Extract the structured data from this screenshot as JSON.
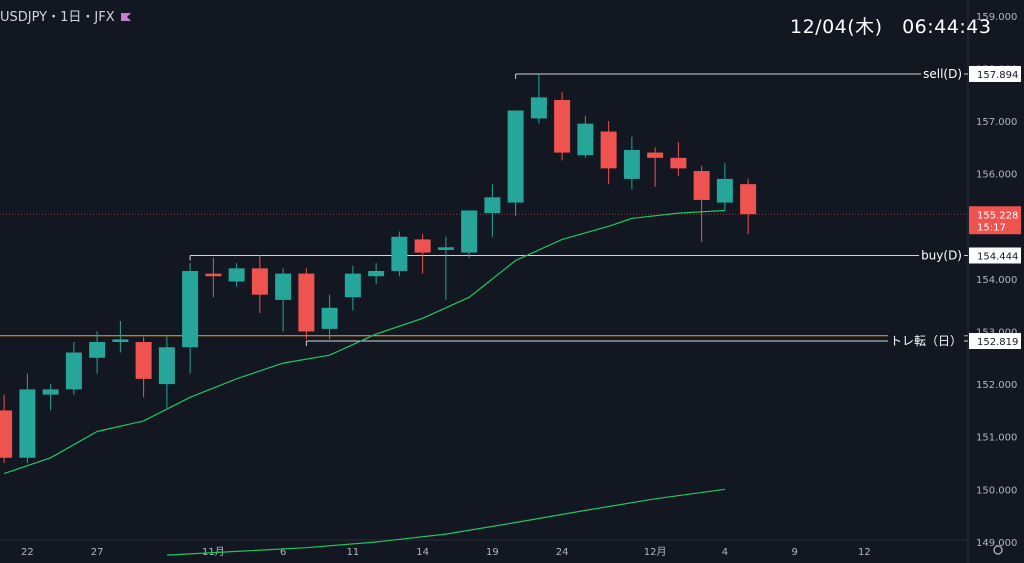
{
  "header": {
    "symbol": "USDJPY・1日・JFX",
    "flag_color": "#c77dcf",
    "clock": "12/04(木)　06:44:43"
  },
  "colors": {
    "background": "#131722",
    "up": "#26a69a",
    "down": "#ef5350",
    "ma": "#22c55e",
    "hline": "#d1d4dc",
    "orange": "#f5a623"
  },
  "chart_data": {
    "type": "candlestick",
    "ylim": [
      148.6,
      159.3
    ],
    "y_ticks": [
      {
        "v": 159,
        "label": "159.000"
      },
      {
        "v": 158,
        "label": "158.000"
      },
      {
        "v": 157,
        "label": "157.000"
      },
      {
        "v": 156,
        "label": "156.000"
      },
      {
        "v": 155,
        "label": "155.000"
      },
      {
        "v": 154,
        "label": "154.000"
      },
      {
        "v": 153,
        "label": "153.000"
      },
      {
        "v": 152,
        "label": "152.000"
      },
      {
        "v": 151,
        "label": "151.000"
      },
      {
        "v": 150,
        "label": "150.000"
      },
      {
        "v": 149,
        "label": "149.000"
      }
    ],
    "x_ticks": [
      {
        "i": 1,
        "label": "22"
      },
      {
        "i": 4,
        "label": "27"
      },
      {
        "i": 9,
        "label": "11月"
      },
      {
        "i": 12,
        "label": "6"
      },
      {
        "i": 15,
        "label": "11"
      },
      {
        "i": 18,
        "label": "14"
      },
      {
        "i": 21,
        "label": "19"
      },
      {
        "i": 24,
        "label": "24"
      },
      {
        "i": 28,
        "label": "12月"
      },
      {
        "i": 31,
        "label": "4"
      },
      {
        "i": 34,
        "label": "9"
      },
      {
        "i": 37,
        "label": "12"
      }
    ],
    "candles": [
      {
        "o": 151.5,
        "h": 151.8,
        "l": 150.5,
        "c": 150.6
      },
      {
        "o": 150.6,
        "h": 152.2,
        "l": 150.5,
        "c": 151.9
      },
      {
        "o": 151.8,
        "h": 152.0,
        "l": 151.5,
        "c": 151.9
      },
      {
        "o": 151.9,
        "h": 152.8,
        "l": 151.8,
        "c": 152.6
      },
      {
        "o": 152.5,
        "h": 153.0,
        "l": 152.2,
        "c": 152.8
      },
      {
        "o": 152.8,
        "h": 153.2,
        "l": 152.6,
        "c": 152.85
      },
      {
        "o": 152.8,
        "h": 152.9,
        "l": 151.75,
        "c": 152.1
      },
      {
        "o": 152.0,
        "h": 152.9,
        "l": 151.55,
        "c": 152.7
      },
      {
        "o": 152.7,
        "h": 154.3,
        "l": 152.2,
        "c": 154.15
      },
      {
        "o": 154.1,
        "h": 154.4,
        "l": 153.65,
        "c": 154.05
      },
      {
        "o": 153.95,
        "h": 154.3,
        "l": 153.85,
        "c": 154.2
      },
      {
        "o": 154.2,
        "h": 154.45,
        "l": 153.35,
        "c": 153.7
      },
      {
        "o": 153.6,
        "h": 154.2,
        "l": 153.0,
        "c": 154.1
      },
      {
        "o": 154.1,
        "h": 154.2,
        "l": 152.85,
        "c": 153.0
      },
      {
        "o": 153.05,
        "h": 153.7,
        "l": 152.85,
        "c": 153.45
      },
      {
        "o": 153.65,
        "h": 154.25,
        "l": 153.4,
        "c": 154.1
      },
      {
        "o": 154.05,
        "h": 154.3,
        "l": 153.9,
        "c": 154.15
      },
      {
        "o": 154.15,
        "h": 154.9,
        "l": 154.05,
        "c": 154.8
      },
      {
        "o": 154.75,
        "h": 154.85,
        "l": 154.1,
        "c": 154.5
      },
      {
        "o": 154.55,
        "h": 154.8,
        "l": 153.6,
        "c": 154.6
      },
      {
        "o": 154.5,
        "h": 155.3,
        "l": 154.4,
        "c": 155.3
      },
      {
        "o": 155.25,
        "h": 155.8,
        "l": 154.8,
        "c": 155.55
      },
      {
        "o": 155.45,
        "h": 157.2,
        "l": 155.2,
        "c": 157.2
      },
      {
        "o": 157.05,
        "h": 157.89,
        "l": 156.95,
        "c": 157.45
      },
      {
        "o": 157.4,
        "h": 157.55,
        "l": 156.25,
        "c": 156.4
      },
      {
        "o": 156.35,
        "h": 157.1,
        "l": 156.3,
        "c": 156.95
      },
      {
        "o": 156.8,
        "h": 157.0,
        "l": 155.8,
        "c": 156.1
      },
      {
        "o": 155.9,
        "h": 156.7,
        "l": 155.7,
        "c": 156.45
      },
      {
        "o": 156.4,
        "h": 156.5,
        "l": 155.75,
        "c": 156.3
      },
      {
        "o": 156.3,
        "h": 156.6,
        "l": 155.95,
        "c": 156.1
      },
      {
        "o": 156.05,
        "h": 156.15,
        "l": 154.7,
        "c": 155.5
      },
      {
        "o": 155.45,
        "h": 156.2,
        "l": 155.3,
        "c": 155.9
      },
      {
        "o": 155.8,
        "h": 155.9,
        "l": 154.85,
        "c": 155.23
      }
    ],
    "ma_short": [
      [
        0,
        150.3
      ],
      [
        2,
        150.6
      ],
      [
        4,
        151.1
      ],
      [
        6,
        151.3
      ],
      [
        8,
        151.75
      ],
      [
        10,
        152.1
      ],
      [
        12,
        152.4
      ],
      [
        14,
        152.55
      ],
      [
        16,
        152.95
      ],
      [
        18,
        153.25
      ],
      [
        20,
        153.65
      ],
      [
        22,
        154.35
      ],
      [
        24,
        154.75
      ],
      [
        26,
        155.0
      ],
      [
        27,
        155.15
      ],
      [
        29,
        155.25
      ],
      [
        31,
        155.3
      ]
    ],
    "ma_long": [
      [
        7,
        148.75
      ],
      [
        10,
        148.82
      ],
      [
        13,
        148.89
      ],
      [
        16,
        149.0
      ],
      [
        19,
        149.15
      ],
      [
        22,
        149.37
      ],
      [
        25,
        149.6
      ],
      [
        28,
        149.82
      ],
      [
        31,
        150.0
      ]
    ],
    "levels": {
      "sell": {
        "label": "sell(D)",
        "value": "157.894",
        "y": 157.894,
        "start": 22
      },
      "buy": {
        "label": "buy(D)",
        "value": "154.444",
        "y": 154.444,
        "start": 8
      },
      "trend": {
        "label": "トレ転（日）",
        "value": "152.819",
        "y": 152.819,
        "start": 13
      },
      "orange": {
        "y": 152.92
      },
      "current": {
        "value": "155.228",
        "countdown": "15:17",
        "y": 155.228
      }
    }
  }
}
